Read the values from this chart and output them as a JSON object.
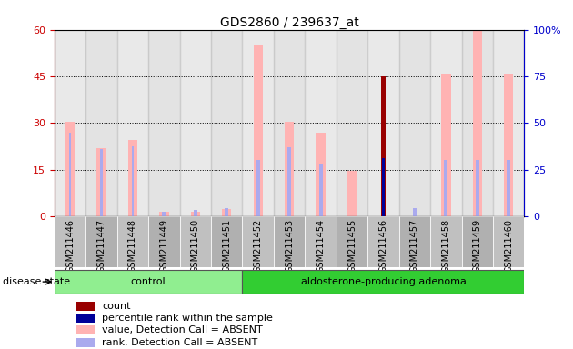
{
  "title": "GDS2860 / 239637_at",
  "samples": [
    "GSM211446",
    "GSM211447",
    "GSM211448",
    "GSM211449",
    "GSM211450",
    "GSM211451",
    "GSM211452",
    "GSM211453",
    "GSM211454",
    "GSM211455",
    "GSM211456",
    "GSM211457",
    "GSM211458",
    "GSM211459",
    "GSM211460"
  ],
  "control_indices": [
    0,
    1,
    2,
    3,
    4,
    5
  ],
  "adenoma_indices": [
    6,
    7,
    8,
    9,
    10,
    11,
    12,
    13,
    14
  ],
  "value_absent": [
    30.5,
    22.0,
    24.5,
    1.5,
    1.5,
    2.5,
    55.0,
    30.5,
    27.0,
    14.5,
    0,
    0,
    46.0,
    60.0,
    46.0
  ],
  "rank_absent_left": [
    27.0,
    21.5,
    22.5,
    0,
    0,
    0,
    0,
    0,
    0,
    0,
    0,
    0,
    0,
    0,
    0
  ],
  "count": [
    0,
    0,
    0,
    0,
    0,
    0,
    0,
    0,
    0,
    0,
    45.0,
    0,
    0,
    0,
    0
  ],
  "percentile_rank": [
    0,
    0,
    0,
    0,
    0,
    0,
    0,
    0,
    0,
    0,
    31.0,
    0,
    0,
    0,
    0
  ],
  "rank_absent_blue": [
    0,
    0,
    0,
    2.5,
    3.5,
    4.5,
    30.0,
    37.0,
    28.5,
    0,
    0,
    4.5,
    30.0,
    30.0,
    30.0
  ],
  "left_ylim": [
    0,
    60
  ],
  "right_ylim": [
    0,
    100
  ],
  "left_yticks": [
    0,
    15,
    30,
    45,
    60
  ],
  "right_yticks": [
    0,
    25,
    50,
    75,
    100
  ],
  "left_tick_labels": [
    "0",
    "15",
    "30",
    "45",
    "60"
  ],
  "right_tick_labels": [
    "0",
    "25",
    "50",
    "75",
    "100%"
  ],
  "color_value_absent": "#FFB3B3",
  "color_rank_absent_left": "#FFB3B3",
  "color_rank_blue": "#AAAAEE",
  "color_count": "#990000",
  "color_percentile": "#000099",
  "color_control_bg": "#90EE90",
  "color_adenoma_bg": "#32CD32",
  "color_sample_bg_even": "#C0C0C0",
  "color_sample_bg_odd": "#B0B0B0",
  "left_axis_color": "#CC0000",
  "right_axis_color": "#0000CC",
  "disease_state_label": "disease state",
  "control_label": "control",
  "adenoma_label": "aldosterone-producing adenoma",
  "legend_items": [
    "count",
    "percentile rank within the sample",
    "value, Detection Call = ABSENT",
    "rank, Detection Call = ABSENT"
  ],
  "legend_colors": [
    "#990000",
    "#000099",
    "#FFB3B3",
    "#AAAAEE"
  ],
  "grid_lines": [
    15,
    30,
    45
  ],
  "bar_width": 0.3
}
